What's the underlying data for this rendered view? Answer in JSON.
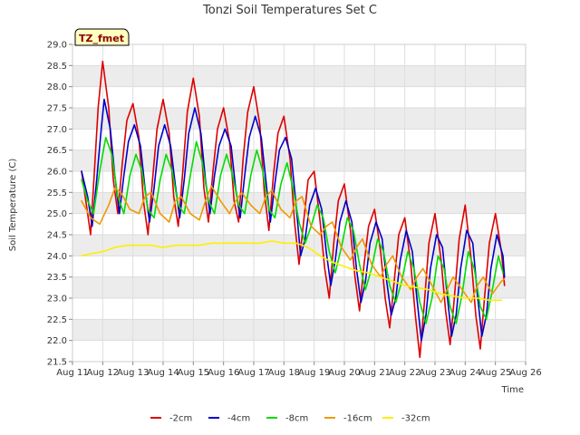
{
  "chart_data": {
    "type": "line",
    "title": "Tonzi Soil Temperatures Set C",
    "xlabel": "Time",
    "ylabel": "Soil Temperature (C)",
    "badge": "TZ_fmet",
    "xlim": [
      11,
      26
    ],
    "ylim": [
      21.5,
      29.0
    ],
    "x_ticks": [
      {
        "value": 11,
        "label": "Aug 11"
      },
      {
        "value": 12,
        "label": "Aug 12"
      },
      {
        "value": 13,
        "label": "Aug 13"
      },
      {
        "value": 14,
        "label": "Aug 14"
      },
      {
        "value": 15,
        "label": "Aug 15"
      },
      {
        "value": 16,
        "label": "Aug 16"
      },
      {
        "value": 17,
        "label": "Aug 17"
      },
      {
        "value": 18,
        "label": "Aug 18"
      },
      {
        "value": 19,
        "label": "Aug 19"
      },
      {
        "value": 20,
        "label": "Aug 20"
      },
      {
        "value": 21,
        "label": "Aug 21"
      },
      {
        "value": 22,
        "label": "Aug 22"
      },
      {
        "value": 23,
        "label": "Aug 23"
      },
      {
        "value": 24,
        "label": "Aug 24"
      },
      {
        "value": 25,
        "label": "Aug 25"
      },
      {
        "value": 26,
        "label": "Aug 26"
      }
    ],
    "y_ticks": [
      "21.5",
      "22.0",
      "22.5",
      "23.0",
      "23.5",
      "24.0",
      "24.5",
      "25.0",
      "25.5",
      "26.0",
      "26.5",
      "27.0",
      "27.5",
      "28.0",
      "28.5",
      "29.0"
    ],
    "grid": true,
    "legend_position": "bottom-center",
    "series": [
      {
        "name": "-2cm",
        "color": "#dd0000",
        "x": [
          11.3,
          11.5,
          11.6,
          11.75,
          11.85,
          12.0,
          12.2,
          12.35,
          12.5,
          12.65,
          12.8,
          13.0,
          13.2,
          13.35,
          13.5,
          13.65,
          13.8,
          14.0,
          14.2,
          14.35,
          14.5,
          14.65,
          14.8,
          15.0,
          15.2,
          15.35,
          15.5,
          15.65,
          15.8,
          16.0,
          16.2,
          16.35,
          16.5,
          16.65,
          16.8,
          17.0,
          17.2,
          17.35,
          17.5,
          17.65,
          17.8,
          18.0,
          18.2,
          18.35,
          18.5,
          18.65,
          18.8,
          19.0,
          19.2,
          19.35,
          19.5,
          19.65,
          19.8,
          20.0,
          20.2,
          20.35,
          20.5,
          20.65,
          20.8,
          21.0,
          21.2,
          21.35,
          21.5,
          21.65,
          21.8,
          22.0,
          22.2,
          22.35,
          22.5,
          22.65,
          22.8,
          23.0,
          23.2,
          23.35,
          23.5,
          23.65,
          23.8,
          24.0,
          24.2,
          24.35,
          24.5,
          24.65,
          24.8,
          25.0,
          25.2,
          25.3
        ],
        "y": [
          26.0,
          25.0,
          24.5,
          26.3,
          27.5,
          28.6,
          27.5,
          25.8,
          25.0,
          26.2,
          27.2,
          27.6,
          26.8,
          25.3,
          24.5,
          25.8,
          27.0,
          27.7,
          26.9,
          25.4,
          24.7,
          26.0,
          27.4,
          28.2,
          27.3,
          25.6,
          24.8,
          26.0,
          27.0,
          27.5,
          26.7,
          25.3,
          24.8,
          26.3,
          27.4,
          28.0,
          27.1,
          25.5,
          24.6,
          25.9,
          26.9,
          27.3,
          26.3,
          24.8,
          23.8,
          24.8,
          25.8,
          26.0,
          24.8,
          23.7,
          23.0,
          24.3,
          25.3,
          25.7,
          24.6,
          23.5,
          22.7,
          23.8,
          24.7,
          25.1,
          24.1,
          23.0,
          22.3,
          23.4,
          24.5,
          24.9,
          23.8,
          22.6,
          21.6,
          22.9,
          24.3,
          25.0,
          23.9,
          22.7,
          21.9,
          23.1,
          24.4,
          25.2,
          23.9,
          22.6,
          21.8,
          23.1,
          24.3,
          25.0,
          24.1,
          23.3
        ]
      },
      {
        "name": "-4cm",
        "color": "#0000cc",
        "x": [
          11.3,
          11.5,
          11.65,
          11.8,
          11.95,
          12.05,
          12.25,
          12.4,
          12.55,
          12.7,
          12.85,
          13.05,
          13.25,
          13.4,
          13.55,
          13.7,
          13.85,
          14.05,
          14.25,
          14.4,
          14.55,
          14.7,
          14.85,
          15.05,
          15.25,
          15.4,
          15.55,
          15.7,
          15.85,
          16.05,
          16.25,
          16.4,
          16.55,
          16.7,
          16.85,
          17.05,
          17.25,
          17.4,
          17.55,
          17.7,
          17.85,
          18.05,
          18.25,
          18.4,
          18.55,
          18.7,
          18.85,
          19.05,
          19.25,
          19.4,
          19.55,
          19.7,
          19.85,
          20.05,
          20.25,
          20.4,
          20.55,
          20.7,
          20.85,
          21.05,
          21.25,
          21.4,
          21.55,
          21.7,
          21.85,
          22.05,
          22.25,
          22.4,
          22.55,
          22.7,
          22.85,
          23.05,
          23.25,
          23.4,
          23.55,
          23.7,
          23.85,
          24.05,
          24.25,
          24.4,
          24.55,
          24.7,
          24.85,
          25.05,
          25.25,
          25.3
        ],
        "y": [
          26.0,
          25.4,
          24.7,
          25.8,
          27.0,
          27.7,
          27.0,
          25.9,
          25.0,
          25.9,
          26.7,
          27.1,
          26.6,
          25.6,
          24.8,
          25.6,
          26.6,
          27.1,
          26.6,
          25.7,
          24.9,
          25.8,
          26.9,
          27.5,
          26.9,
          25.8,
          25.0,
          25.9,
          26.6,
          27.0,
          26.6,
          25.6,
          24.9,
          25.9,
          26.8,
          27.3,
          26.8,
          25.8,
          24.8,
          25.7,
          26.5,
          26.8,
          26.3,
          25.2,
          24.0,
          24.4,
          25.2,
          25.6,
          25.1,
          24.1,
          23.3,
          23.9,
          24.8,
          25.3,
          24.8,
          23.7,
          22.9,
          23.4,
          24.3,
          24.8,
          24.4,
          23.4,
          22.6,
          23.0,
          23.9,
          24.6,
          24.1,
          23.0,
          22.0,
          22.6,
          23.7,
          24.5,
          24.2,
          23.1,
          22.1,
          22.6,
          23.7,
          24.6,
          24.3,
          23.1,
          22.1,
          22.6,
          23.7,
          24.5,
          24.0,
          23.5
        ]
      },
      {
        "name": "-8cm",
        "color": "#00dd00",
        "x": [
          11.3,
          11.5,
          11.7,
          11.9,
          12.1,
          12.3,
          12.5,
          12.7,
          12.9,
          13.1,
          13.3,
          13.5,
          13.7,
          13.9,
          14.1,
          14.3,
          14.5,
          14.7,
          14.9,
          15.1,
          15.3,
          15.5,
          15.7,
          15.9,
          16.1,
          16.3,
          16.5,
          16.7,
          16.9,
          17.1,
          17.3,
          17.5,
          17.7,
          17.9,
          18.1,
          18.3,
          18.5,
          18.7,
          18.9,
          19.1,
          19.3,
          19.5,
          19.7,
          19.9,
          20.1,
          20.3,
          20.5,
          20.7,
          20.9,
          21.1,
          21.3,
          21.5,
          21.7,
          21.9,
          22.1,
          22.3,
          22.5,
          22.7,
          22.9,
          23.1,
          23.3,
          23.5,
          23.7,
          23.9,
          24.1,
          24.3,
          24.5,
          24.7,
          24.9,
          25.1,
          25.25
        ],
        "y": [
          25.8,
          25.3,
          25.0,
          26.0,
          26.8,
          26.4,
          25.4,
          25.0,
          25.9,
          26.4,
          26.0,
          25.1,
          24.9,
          25.8,
          26.4,
          26.0,
          25.2,
          25.0,
          25.9,
          26.7,
          26.2,
          25.3,
          25.0,
          25.9,
          26.4,
          25.9,
          25.2,
          25.0,
          25.9,
          26.5,
          26.0,
          25.1,
          24.9,
          25.7,
          26.2,
          25.6,
          24.8,
          24.3,
          24.7,
          25.2,
          24.9,
          24.1,
          23.6,
          24.2,
          24.9,
          24.6,
          23.8,
          23.2,
          23.7,
          24.4,
          24.1,
          23.3,
          22.9,
          23.4,
          24.1,
          23.7,
          22.9,
          22.4,
          23.0,
          24.0,
          23.7,
          22.8,
          22.4,
          23.1,
          24.1,
          23.7,
          22.8,
          22.5,
          23.2,
          24.0,
          23.6
        ]
      },
      {
        "name": "-16cm",
        "color": "#ee9900",
        "x": [
          11.3,
          11.6,
          11.9,
          12.2,
          12.4,
          12.6,
          12.9,
          13.2,
          13.4,
          13.6,
          13.9,
          14.2,
          14.4,
          14.6,
          14.9,
          15.2,
          15.4,
          15.6,
          15.9,
          16.2,
          16.4,
          16.6,
          16.9,
          17.2,
          17.4,
          17.6,
          17.9,
          18.2,
          18.4,
          18.6,
          18.9,
          19.2,
          19.4,
          19.6,
          19.9,
          20.2,
          20.4,
          20.6,
          20.9,
          21.2,
          21.4,
          21.6,
          21.9,
          22.2,
          22.4,
          22.6,
          22.9,
          23.2,
          23.4,
          23.6,
          23.9,
          24.2,
          24.4,
          24.6,
          24.9,
          25.2,
          25.3
        ],
        "y": [
          25.3,
          24.9,
          24.75,
          25.2,
          25.6,
          25.5,
          25.1,
          25.0,
          25.4,
          25.5,
          25.0,
          24.8,
          25.3,
          25.4,
          25.0,
          24.85,
          25.3,
          25.65,
          25.3,
          25.0,
          25.3,
          25.5,
          25.2,
          25.0,
          25.4,
          25.55,
          25.1,
          24.9,
          25.3,
          25.4,
          24.7,
          24.5,
          24.7,
          24.8,
          24.2,
          23.9,
          24.2,
          24.4,
          23.8,
          23.5,
          23.8,
          24.0,
          23.5,
          23.2,
          23.5,
          23.7,
          23.3,
          22.9,
          23.2,
          23.5,
          23.2,
          22.9,
          23.3,
          23.5,
          23.1,
          23.4,
          23.45
        ]
      },
      {
        "name": "-32cm",
        "color": "#ffee00",
        "x": [
          11.3,
          11.6,
          12.0,
          12.4,
          12.8,
          13.2,
          13.6,
          14.0,
          14.4,
          14.8,
          15.2,
          15.6,
          16.0,
          16.4,
          16.8,
          17.2,
          17.6,
          18.0,
          18.4,
          18.8,
          19.2,
          19.6,
          20.0,
          20.4,
          20.8,
          21.2,
          21.6,
          22.0,
          22.4,
          22.8,
          23.2,
          23.6,
          24.0,
          24.4,
          24.8,
          25.2
        ],
        "y": [
          24.0,
          24.05,
          24.1,
          24.2,
          24.25,
          24.25,
          24.25,
          24.2,
          24.25,
          24.25,
          24.25,
          24.3,
          24.3,
          24.3,
          24.3,
          24.3,
          24.35,
          24.3,
          24.3,
          24.2,
          24.0,
          23.85,
          23.75,
          23.65,
          23.6,
          23.5,
          23.4,
          23.3,
          23.25,
          23.2,
          23.1,
          23.05,
          23.0,
          23.0,
          22.95,
          22.95
        ]
      }
    ]
  }
}
